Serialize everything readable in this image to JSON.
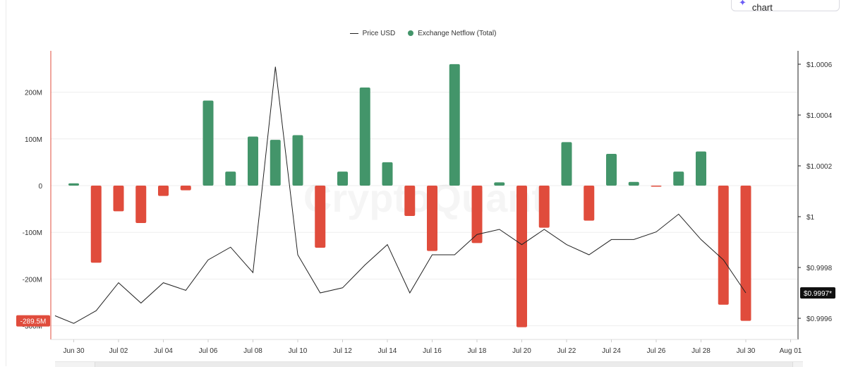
{
  "ask_ai": {
    "label": "Ask AI about this chart",
    "icon": "sparkle-icon"
  },
  "legend": {
    "items": [
      {
        "label": "Price USD",
        "marker": "line",
        "color": "#222222"
      },
      {
        "label": "Exchange Netflow (Total)",
        "marker": "dot",
        "color": "#43956a"
      }
    ]
  },
  "watermark": "CryptoQuant",
  "chart_data": {
    "type": "bar",
    "x_labels": [
      "Jun 30",
      "Jul 02",
      "Jul 04",
      "Jul 06",
      "Jul 08",
      "Jul 10",
      "Jul 12",
      "Jul 14",
      "Jul 16",
      "Jul 18",
      "Jul 20",
      "Jul 22",
      "Jul 24",
      "Jul 26",
      "Jul 28",
      "Jul 30",
      "Aug 01"
    ],
    "dates": [
      "Jun 29",
      "Jun 30",
      "Jul 01",
      "Jul 02",
      "Jul 03",
      "Jul 04",
      "Jul 05",
      "Jul 06",
      "Jul 07",
      "Jul 08",
      "Jul 09",
      "Jul 10",
      "Jul 11",
      "Jul 12",
      "Jul 13",
      "Jul 14",
      "Jul 15",
      "Jul 16",
      "Jul 17",
      "Jul 18",
      "Jul 19",
      "Jul 20",
      "Jul 21",
      "Jul 22",
      "Jul 23",
      "Jul 24",
      "Jul 25",
      "Jul 26",
      "Jul 27",
      "Jul 28",
      "Jul 29",
      "Jul 30"
    ],
    "netflow_series": {
      "name": "Exchange Netflow (Total)",
      "axis": "left",
      "positive_color": "#43956a",
      "negative_color": "#e04c3c",
      "values": [
        null,
        5000000,
        -165000000,
        -55000000,
        -80000000,
        -22000000,
        -10000000,
        182000000,
        30000000,
        105000000,
        98000000,
        108000000,
        -133000000,
        30000000,
        210000000,
        50000000,
        -65000000,
        -140000000,
        260000000,
        -123000000,
        7000000,
        -303000000,
        -90000000,
        93000000,
        -75000000,
        68000000,
        8000000,
        -2000000,
        30000000,
        73000000,
        -255000000,
        -289500000
      ]
    },
    "price_series": {
      "name": "Price USD",
      "axis": "right",
      "color": "#222222",
      "values": [
        0.99961,
        0.99958,
        0.99963,
        0.99974,
        0.99966,
        0.99974,
        0.99971,
        0.99983,
        0.99988,
        0.99978,
        1.00059,
        0.99985,
        0.9997,
        0.99972,
        0.99981,
        0.99989,
        0.9997,
        0.99985,
        0.99985,
        0.99993,
        0.99995,
        0.99989,
        0.99995,
        0.99989,
        0.99985,
        0.99991,
        0.99991,
        0.99994,
        1.00001,
        0.99991,
        0.99983,
        0.9997
      ]
    },
    "y_left": {
      "ticks": [
        "200M",
        "100M",
        "0",
        "-100M",
        "-200M",
        "-300M"
      ],
      "tick_values": [
        200000000,
        100000000,
        0,
        -100000000,
        -200000000,
        -300000000
      ],
      "range": [
        -300000000,
        300000000
      ]
    },
    "y_right": {
      "ticks": [
        "$1.0006",
        "$1.0004",
        "$1.0002",
        "$1",
        "$0.9998",
        "$0.9996"
      ],
      "tick_values": [
        1.0006,
        1.0004,
        1.0002,
        1.0,
        0.9998,
        0.9996
      ],
      "range": [
        0.99955,
        1.00063
      ]
    },
    "last_price_label": "$0.9997*",
    "min_netflow_label": "-289.5M",
    "grid": true
  }
}
